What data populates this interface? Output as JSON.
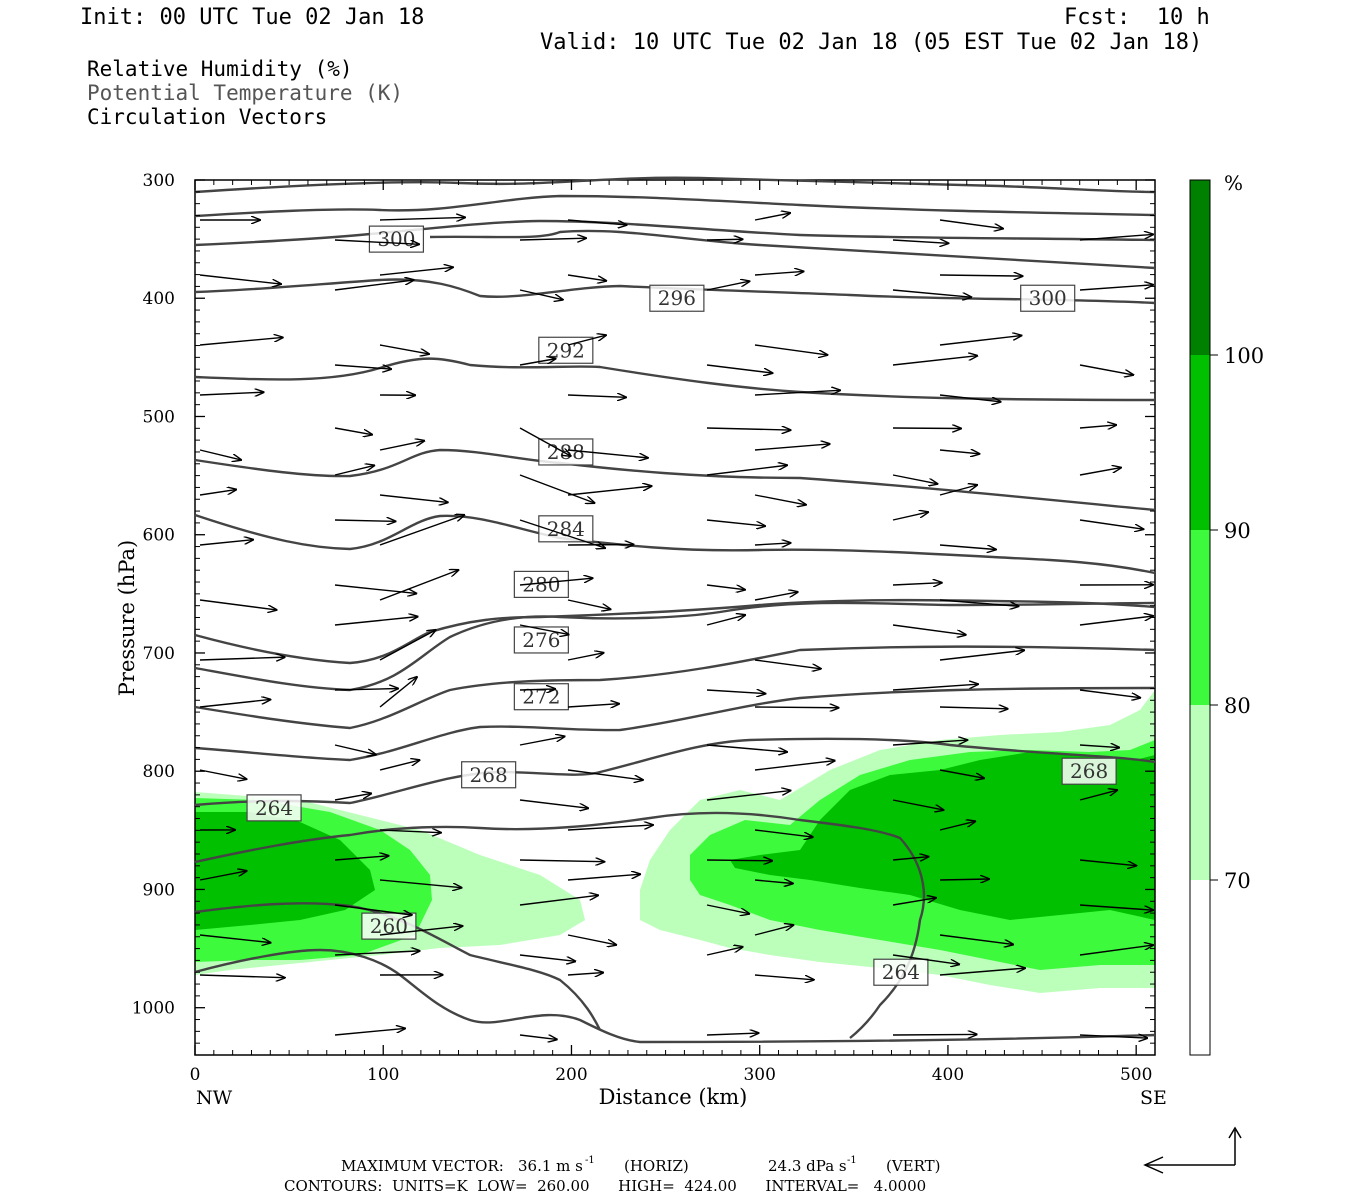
{
  "header": {
    "init": "Init: 00 UTC Tue 02 Jan 18",
    "fcst": "Fcst:  10 h",
    "valid": "Valid: 10 UTC Tue 02 Jan 18 (05 EST Tue 02 Jan 18)"
  },
  "legend": {
    "rh": "Relative Humidity (%)",
    "theta": "Potential Temperature (K)",
    "vectors": "Circulation Vectors"
  },
  "footer": {
    "max_vector_label": "MAXIMUM VECTOR:",
    "max_horiz": "36.1 m s",
    "horiz_tag": "(HORIZ)",
    "max_vert": "24.3 dPa s",
    "vert_tag": "(VERT)",
    "exp": "-1",
    "contours": "CONTOURS:  UNITS=K  LOW=  260.00      HIGH=  424.00      INTERVAL=   4.0000"
  },
  "colors": {
    "rh_70_80": "#bbffbb",
    "rh_80_90": "#3dfa3d",
    "rh_90_100": "#00c000",
    "rh_100": "#008000",
    "contour": "#444444"
  },
  "chart_data": {
    "type": "cross-section",
    "xlabel": "Distance (km)",
    "ylabel": "Pressure (hPa)",
    "xlim": [
      0,
      510
    ],
    "ylim": [
      1040,
      300
    ],
    "x_ticks": [
      0,
      100,
      200,
      300,
      400,
      500
    ],
    "y_ticks": [
      300,
      400,
      500,
      600,
      700,
      800,
      900,
      1000
    ],
    "x_end_labels": {
      "left": "NW",
      "right": "SE"
    },
    "colorbar": {
      "unit": "%",
      "levels": [
        70,
        80,
        90,
        100
      ],
      "colors": [
        "#ffffff",
        "#bbffbb",
        "#3dfa3d",
        "#00c000",
        "#008000"
      ]
    },
    "theta_contour_labels": [
      {
        "value": "300",
        "x": 107,
        "p": 350
      },
      {
        "value": "296",
        "x": 256,
        "p": 400
      },
      {
        "value": "300",
        "x": 453,
        "p": 400
      },
      {
        "value": "292",
        "x": 197,
        "p": 444
      },
      {
        "value": "288",
        "x": 197,
        "p": 530
      },
      {
        "value": "284",
        "x": 197,
        "p": 595
      },
      {
        "value": "280",
        "x": 184,
        "p": 642
      },
      {
        "value": "276",
        "x": 184,
        "p": 689
      },
      {
        "value": "272",
        "x": 184,
        "p": 737
      },
      {
        "value": "268",
        "x": 156,
        "p": 803
      },
      {
        "value": "264",
        "x": 42,
        "p": 831
      },
      {
        "value": "260",
        "x": 103,
        "p": 931
      },
      {
        "value": "264",
        "x": 375,
        "p": 970
      },
      {
        "value": "268",
        "x": 475,
        "p": 800
      }
    ]
  }
}
